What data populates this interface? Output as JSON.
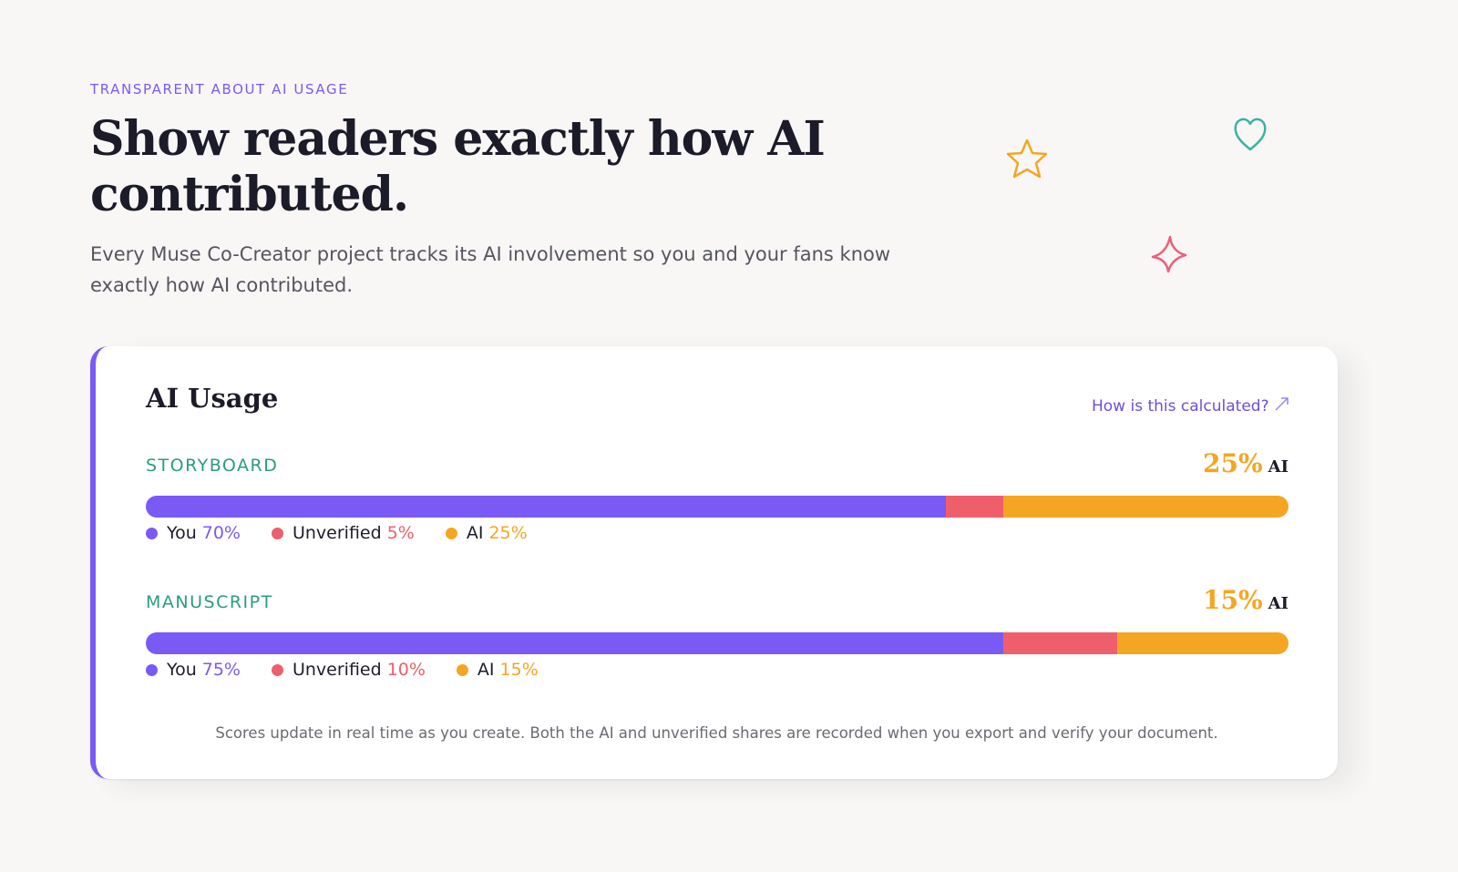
{
  "eyebrow": "TRANSPARENT ABOUT AI USAGE",
  "title": "Show readers exactly how AI contributed.",
  "subtitle": "Every Muse Co-Creator project tracks its AI involvement so you and your fans know exactly how AI contributed.",
  "card": {
    "title": "AI Usage",
    "link": "How is this calculated?",
    "footnote": "Scores update in real time as you create. Both the AI and unverified shares are recorded when you export and verify your document.",
    "sections": [
      {
        "name": "STORYBOARD",
        "summary": "25%",
        "summary_suffix": "AI",
        "segments": [
          {
            "name": "You",
            "value": 70,
            "label": "70%",
            "color": "#7a5af5"
          },
          {
            "name": "Unverified",
            "value": 5,
            "label": "5%",
            "color": "#ee5f6b"
          },
          {
            "name": "AI",
            "value": 25,
            "label": "25%",
            "color": "#f4a623"
          }
        ]
      },
      {
        "name": "MANUSCRIPT",
        "summary": "15%",
        "summary_suffix": "AI",
        "segments": [
          {
            "name": "You",
            "value": 75,
            "label": "75%",
            "color": "#7a5af5"
          },
          {
            "name": "Unverified",
            "value": 10,
            "label": "10%",
            "color": "#ee5f6b"
          },
          {
            "name": "AI",
            "value": 15,
            "label": "15%",
            "color": "#f4a623"
          }
        ]
      }
    ]
  }
}
